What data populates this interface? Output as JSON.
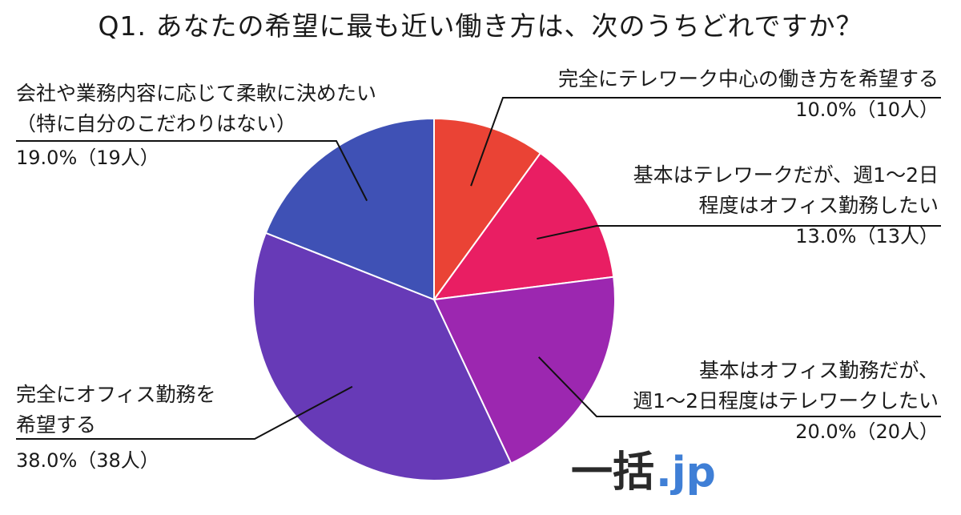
{
  "chart_data": {
    "type": "pie",
    "title": "Q1. あなたの希望に最も近い働き方は、次のうちどれですか？",
    "slices": [
      {
        "label_lines": [
          "完全にテレワーク中心の働き方を希望する"
        ],
        "value": 10.0,
        "count_text": "10.0%（10人）",
        "color": "#ea4335"
      },
      {
        "label_lines": [
          "基本はテレワークだが、週1～2日",
          "程度はオフィス勤務したい"
        ],
        "value": 13.0,
        "count_text": "13.0%（13人）",
        "color": "#e91e63"
      },
      {
        "label_lines": [
          "基本はオフィス勤務だが、",
          "週1～2日程度はテレワークしたい"
        ],
        "value": 20.0,
        "count_text": "20.0%（20人）",
        "color": "#9c27b0"
      },
      {
        "label_lines": [
          "完全にオフィス勤務を",
          "希望する"
        ],
        "value": 38.0,
        "count_text": "38.0%（38人）",
        "color": "#673ab7"
      },
      {
        "label_lines": [
          "会社や業務内容に応じて柔軟に決めたい",
          "（特に自分のこだわりはない）"
        ],
        "value": 19.0,
        "count_text": "19.0%（19人）",
        "color": "#3f51b5"
      }
    ]
  },
  "watermark": {
    "prefix": "一括",
    "suffix": ".jp"
  }
}
